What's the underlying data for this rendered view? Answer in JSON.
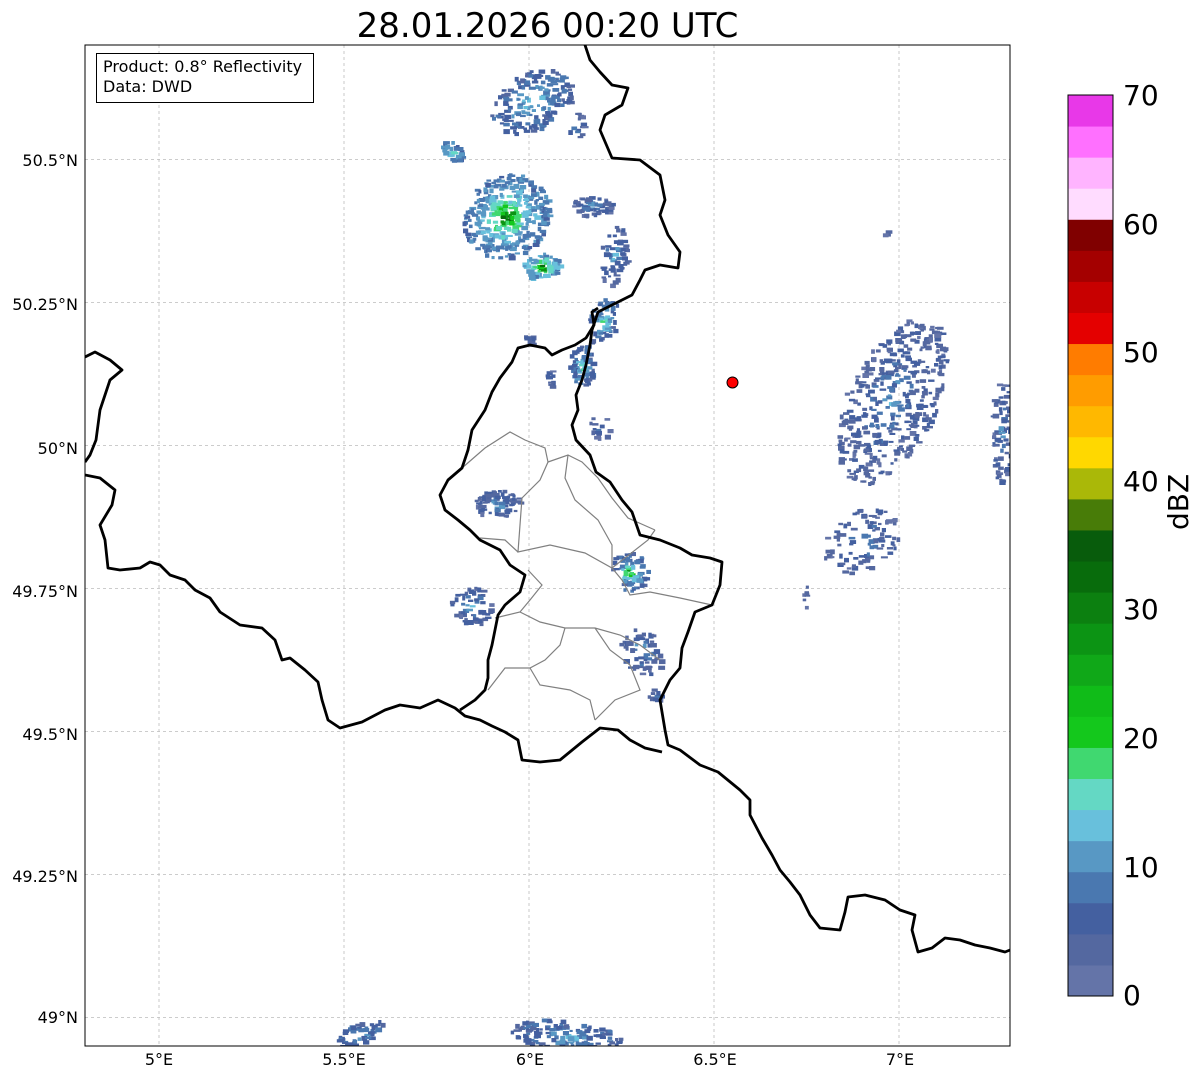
{
  "title": "28.01.2026 00:20 UTC",
  "info": {
    "product": "Product: 0.8° Reflectivity",
    "data": "Data: DWD"
  },
  "map": {
    "lon_range": [
      4.8,
      7.3
    ],
    "lat_range": [
      48.95,
      50.7
    ],
    "lat_ticks": [
      {
        "label": "50.5°N",
        "value": 50.5
      },
      {
        "label": "50.25°N",
        "value": 50.25
      },
      {
        "label": "50°N",
        "value": 50.0
      },
      {
        "label": "49.75°N",
        "value": 49.75
      },
      {
        "label": "49.5°N",
        "value": 49.5
      },
      {
        "label": "49.25°N",
        "value": 49.25
      },
      {
        "label": "49°N",
        "value": 49.0
      }
    ],
    "lon_ticks": [
      {
        "label": "5°E",
        "value": 5.0
      },
      {
        "label": "5.5°E",
        "value": 5.5
      },
      {
        "label": "6°E",
        "value": 6.0
      },
      {
        "label": "6.5°E",
        "value": 6.5
      },
      {
        "label": "7°E",
        "value": 7.0
      }
    ],
    "radar_site": {
      "lon": 6.55,
      "lat": 50.11,
      "color": "#ff0000"
    }
  },
  "colorbar": {
    "label": "dBZ",
    "min": 0,
    "max": 70,
    "ticks": [
      "70",
      "60",
      "50",
      "40",
      "30",
      "20",
      "10",
      "0"
    ],
    "colors": [
      "#6474a8",
      "#5468a0",
      "#4460a0",
      "#4a78b0",
      "#5898c4",
      "#68c0dc",
      "#64d8c4",
      "#40d870",
      "#14c81c",
      "#10bc18",
      "#10a818",
      "#0c9414",
      "#0c8010",
      "#086c0c",
      "#085c0c",
      "#487c08",
      "#aab808",
      "#ffd800",
      "#ffb800",
      "#ff9c00",
      "#ff7c00",
      "#e40000",
      "#c80000",
      "#a40000",
      "#800000",
      "#ffdcff",
      "#ffb4ff",
      "#ff70ff",
      "#e838e8"
    ]
  }
}
